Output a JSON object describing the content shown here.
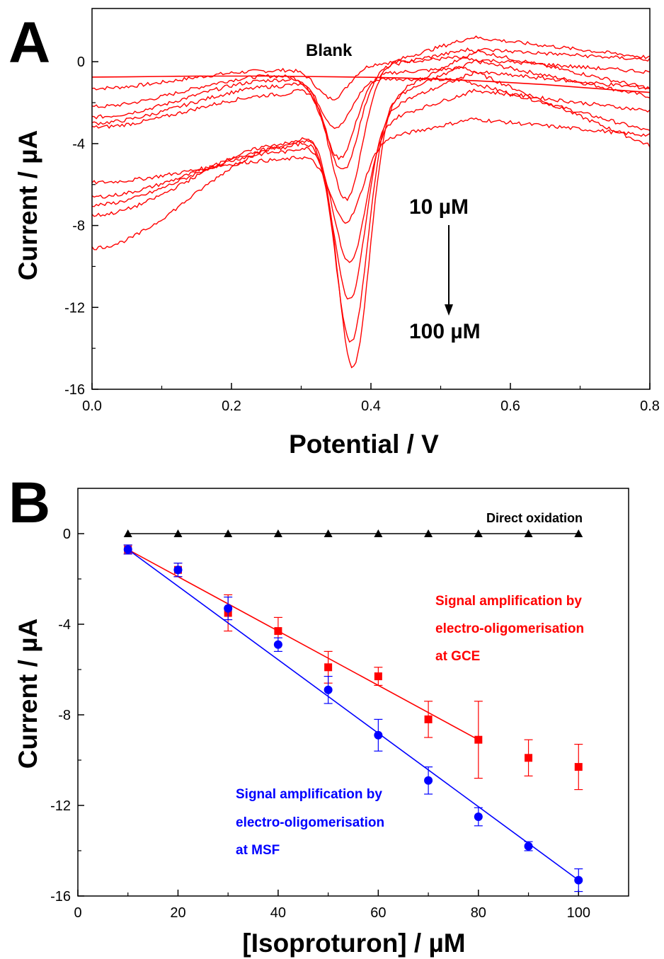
{
  "chart_data": [
    {
      "panel": "A",
      "type": "line",
      "xlabel": "Potential / V",
      "ylabel": "Current / µA",
      "xlim": [
        0.0,
        0.8
      ],
      "ylim": [
        -16,
        2.6
      ],
      "xticks": [
        0.0,
        0.2,
        0.4,
        0.6,
        0.8
      ],
      "xtick_labels": [
        "0.0",
        "0.2",
        "0.4",
        "0.6",
        "0.8"
      ],
      "yticks": [
        0,
        -4,
        -8,
        -12,
        -16
      ],
      "ytick_labels": [
        "0",
        "-4",
        "-8",
        "-12",
        "-16"
      ],
      "grid": false,
      "line_color": "#ff0000",
      "annotations": {
        "blank": "Blank",
        "start": "10 µM",
        "end": "100 µM"
      },
      "blank_curve": {
        "x": [
          0.0,
          0.05,
          0.1,
          0.15,
          0.2,
          0.25,
          0.3,
          0.35,
          0.4,
          0.45,
          0.5,
          0.55,
          0.6,
          0.65,
          0.7,
          0.75,
          0.8
        ],
        "y": [
          -0.75,
          -0.74,
          -0.72,
          -0.7,
          -0.7,
          -0.7,
          -0.72,
          -0.74,
          -0.76,
          -0.8,
          -0.86,
          -0.93,
          -1.02,
          -1.12,
          -1.25,
          -1.38,
          -1.5
        ]
      },
      "concentration_curves": [
        {
          "y_start": -1.3,
          "pre_peak_hump": -0.45,
          "peak_potential": 0.345,
          "peak_current": -1.8,
          "post_peak": 0.2,
          "y_end": -1.7
        },
        {
          "y_start": -2.2,
          "pre_peak_hump": -0.7,
          "peak_potential": 0.35,
          "peak_current": -3.2,
          "post_peak": -0.9,
          "y_end": -3.4
        },
        {
          "y_start": -2.7,
          "pre_peak_hump": -0.9,
          "peak_potential": 0.355,
          "peak_current": -4.7,
          "post_peak": -0.3,
          "y_end": -4.1
        },
        {
          "y_start": -3.0,
          "pre_peak_hump": -1.2,
          "peak_potential": 0.36,
          "peak_current": -5.3,
          "post_peak": 0.6,
          "y_end": -1.3
        },
        {
          "y_start": -3.2,
          "pre_peak_hump": -1.6,
          "peak_potential": 0.365,
          "peak_current": -6.7,
          "post_peak": 1.2,
          "y_end": 0.2
        },
        {
          "y_start": -5.9,
          "pre_peak_hump": -4.8,
          "peak_potential": 0.365,
          "peak_current": -7.8,
          "post_peak": -2.8,
          "y_end": -3.6
        },
        {
          "y_start": -6.6,
          "pre_peak_hump": -4.4,
          "peak_potential": 0.37,
          "peak_current": -9.8,
          "post_peak": -1.4,
          "y_end": -2.4
        },
        {
          "y_start": -7.0,
          "pre_peak_hump": -4.2,
          "peak_potential": 0.37,
          "peak_current": -11.6,
          "post_peak": -0.5,
          "y_end": -1.3
        },
        {
          "y_start": -7.5,
          "pre_peak_hump": -4.0,
          "peak_potential": 0.372,
          "peak_current": -13.7,
          "post_peak": 0.1,
          "y_end": -0.5
        },
        {
          "y_start": -9.1,
          "pre_peak_hump": -4.1,
          "peak_potential": 0.375,
          "peak_current": -14.9,
          "post_peak": 0.6,
          "y_end": 0.1
        }
      ]
    },
    {
      "panel": "B",
      "type": "scatter",
      "xlabel": "[Isoproturon] / µM",
      "ylabel": "Current / µA",
      "xlim": [
        0,
        110
      ],
      "ylim": [
        -16,
        2
      ],
      "xticks": [
        0,
        20,
        40,
        60,
        80,
        100
      ],
      "xtick_labels": [
        "0",
        "20",
        "40",
        "60",
        "80",
        "100"
      ],
      "yticks": [
        0,
        -4,
        -8,
        -12,
        -16
      ],
      "ytick_labels": [
        "0",
        "-4",
        "-8",
        "-12",
        "-16"
      ],
      "grid": false,
      "series": [
        {
          "name": "Direct oxidation",
          "marker": "triangle",
          "color": "#000000",
          "x": [
            10,
            20,
            30,
            40,
            50,
            60,
            70,
            80,
            90,
            100
          ],
          "y": [
            0,
            0,
            0,
            0,
            0,
            0,
            0,
            0,
            0,
            0
          ],
          "connect": true
        },
        {
          "name_lines": [
            "Signal amplification by",
            "electro-oligomerisation",
            "at GCE"
          ],
          "marker": "square",
          "color": "#ff0000",
          "x": [
            10,
            20,
            30,
            40,
            50,
            60,
            70,
            80,
            90,
            100
          ],
          "y": [
            -0.7,
            -1.6,
            -3.5,
            -4.3,
            -5.9,
            -6.3,
            -8.2,
            -9.1,
            -9.9,
            -10.3
          ],
          "err": [
            0.2,
            0.3,
            0.8,
            0.6,
            0.7,
            0.4,
            0.8,
            1.7,
            0.8,
            1.0
          ],
          "fit": {
            "x": [
              10,
              80
            ],
            "y": [
              -0.7,
              -9.1
            ]
          }
        },
        {
          "name_lines": [
            "Signal amplification by",
            "electro-oligomerisation",
            "at MSF"
          ],
          "marker": "circle",
          "color": "#0000ff",
          "x": [
            10,
            20,
            30,
            40,
            50,
            60,
            70,
            80,
            90,
            100
          ],
          "y": [
            -0.7,
            -1.6,
            -3.3,
            -4.9,
            -6.9,
            -8.9,
            -10.9,
            -12.5,
            -13.8,
            -15.3
          ],
          "err": [
            0.2,
            0.3,
            0.5,
            0.3,
            0.6,
            0.7,
            0.6,
            0.4,
            0.2,
            0.5
          ],
          "fit": {
            "x": [
              10,
              100
            ],
            "y": [
              -0.7,
              -15.3
            ]
          }
        }
      ]
    }
  ]
}
